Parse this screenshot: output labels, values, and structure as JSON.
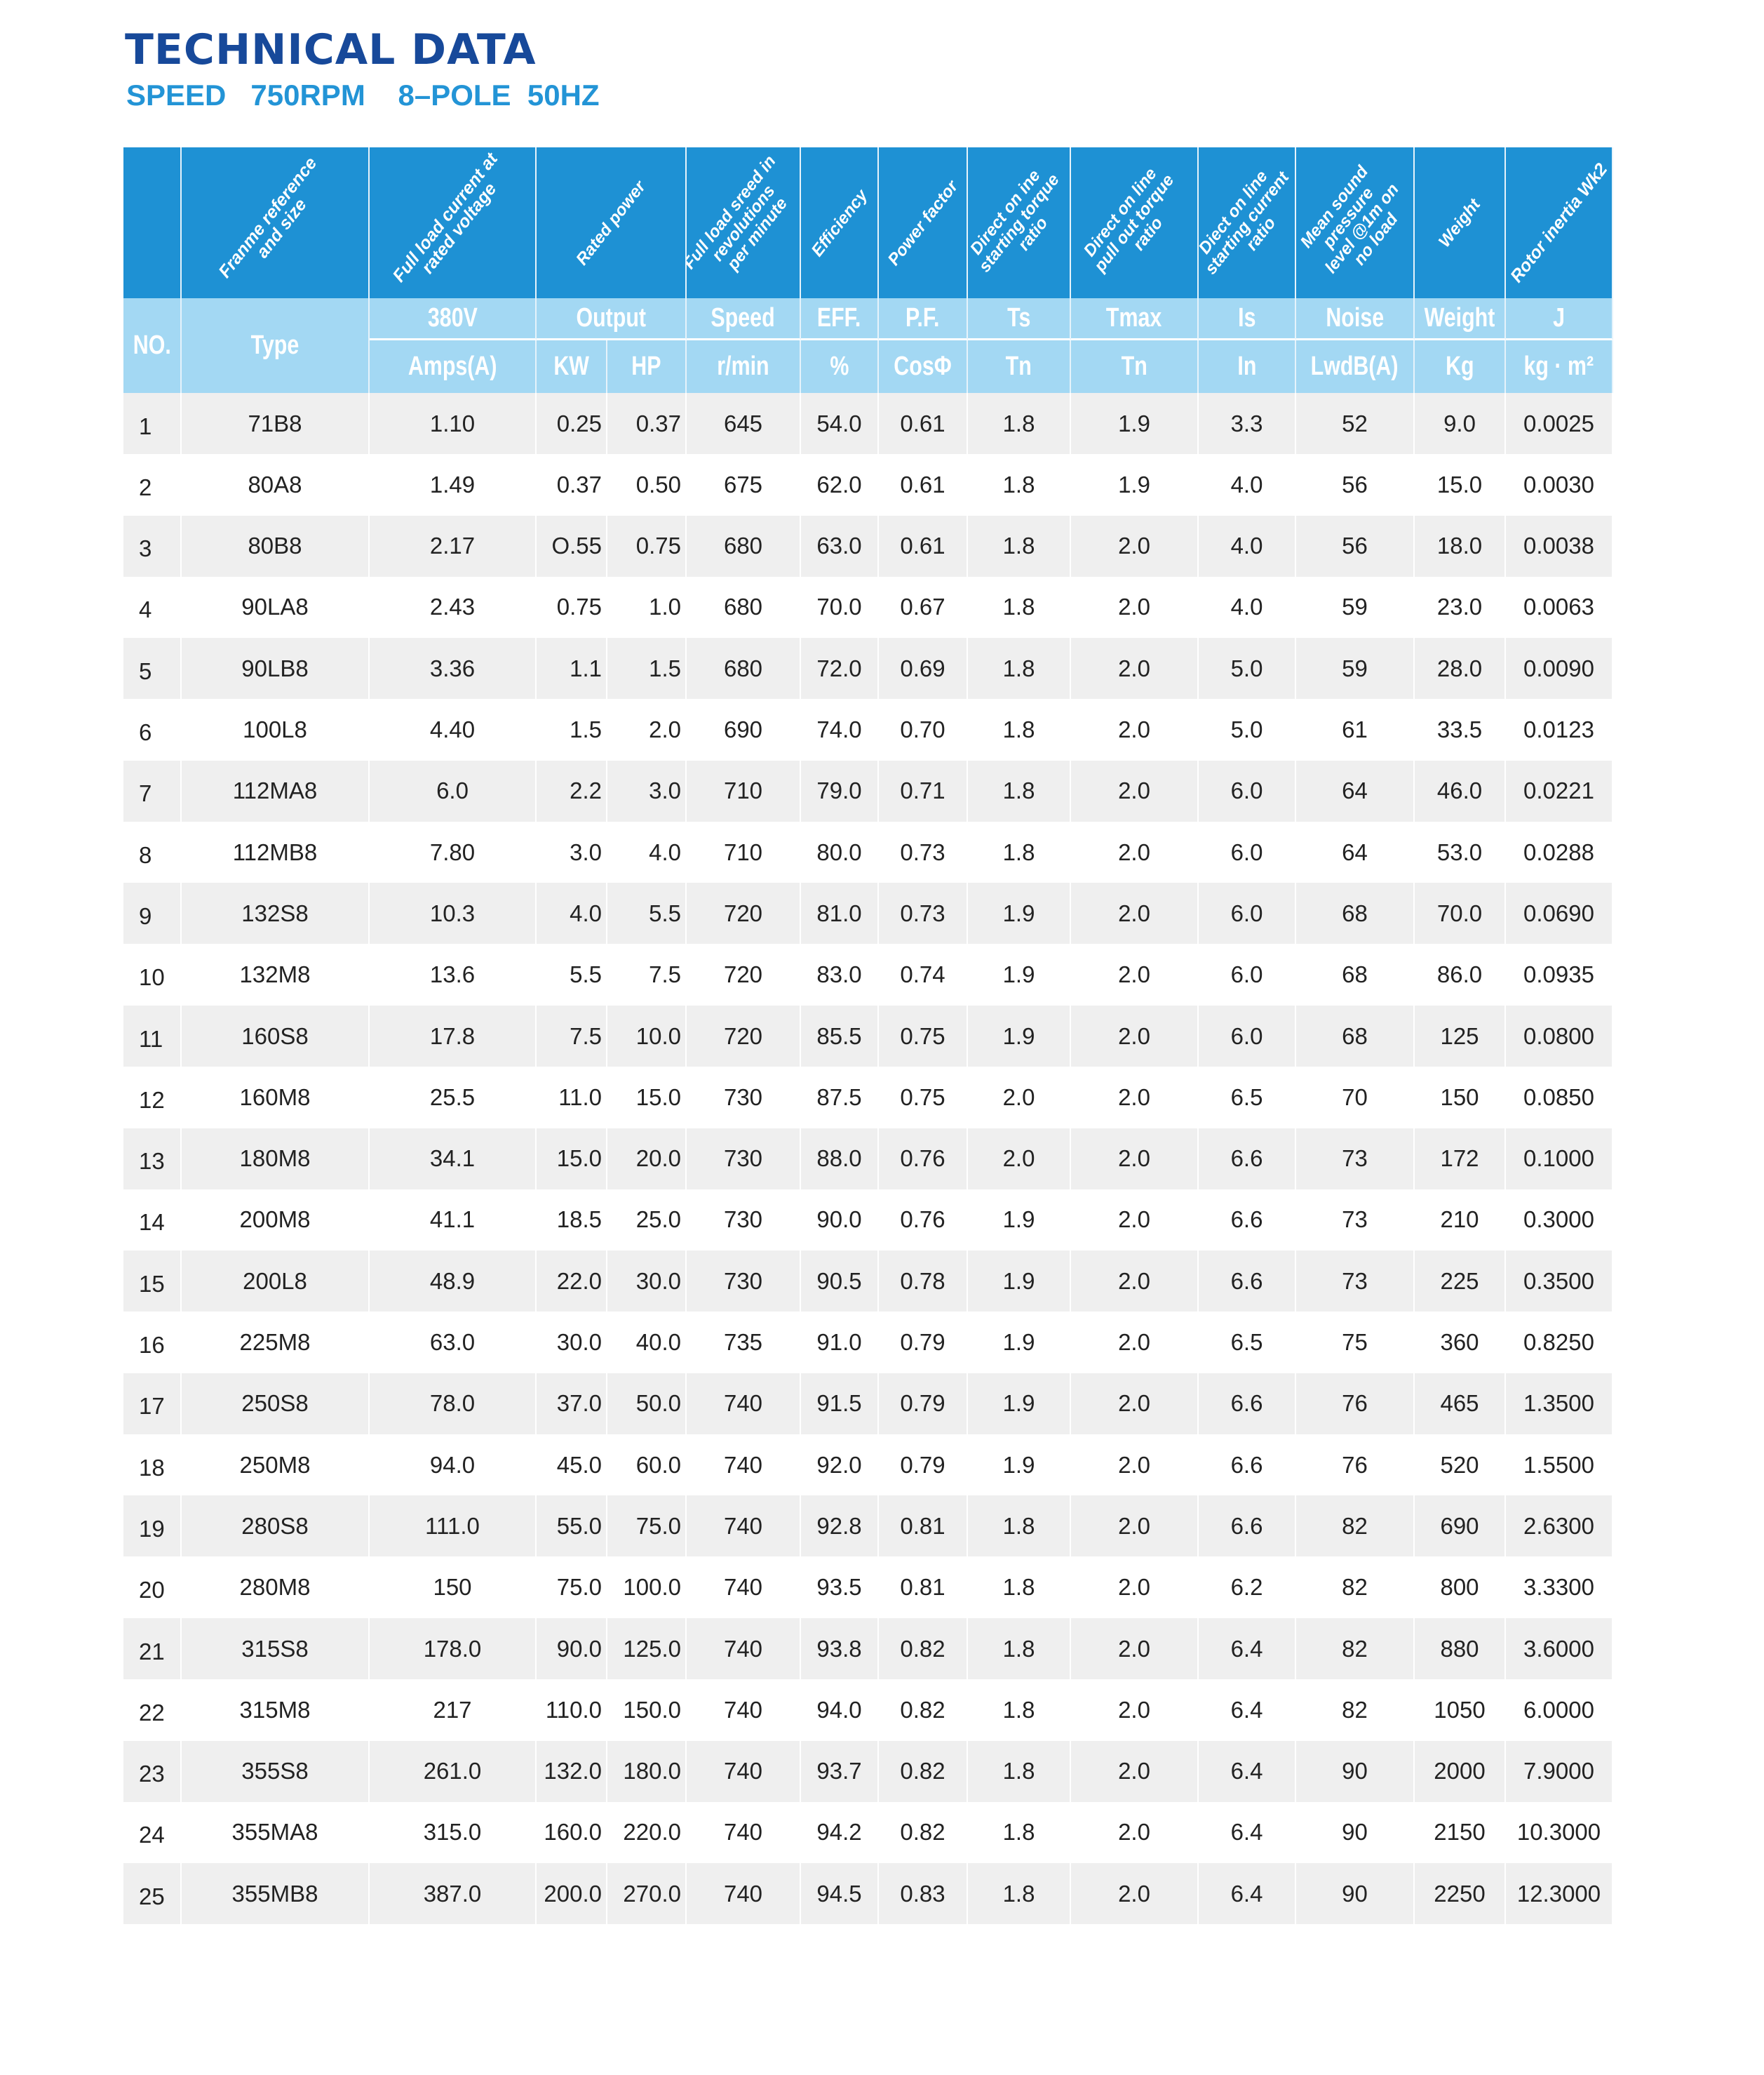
{
  "title": "TECHNICAL DATA",
  "subtitle": "SPEED   750RPM    8–POLE  50HZ",
  "colors": {
    "title": "#17499a",
    "subtitle": "#2394d6",
    "header": "#1e91d4",
    "subheader": "#a3d8f3",
    "row_alt": "#efefef"
  },
  "header_descriptions": [
    "",
    "Franme reference\nand size",
    "Full load current at\nrated voltage",
    "Rated power",
    "Full load sreed in\nrevolutions\nper minute",
    "Efficiency",
    "Power factor",
    "Direct on ine\nstarting torque\nratio",
    "Direct on line\npull out torque\nratio",
    "Diect on line\nstarting current\nratio",
    "Mean sound\npressure\nlevel @1m on\nno load",
    "Weight",
    "Rotor inertia Wk2"
  ],
  "subheader": {
    "no": "NO.",
    "type": "Type",
    "voltage": "380V",
    "output": "Output",
    "speed": "Speed",
    "eff": "EFF.",
    "pf": "P.F.",
    "ts": "Ts",
    "tmax": "Tmax",
    "is": "Is",
    "noise": "Noise",
    "weight": "Weight",
    "j": "J",
    "amps": "Amps(A)",
    "kw": "KW",
    "hp": "HP",
    "rmin": "r/min",
    "pct": "%",
    "cos": "CosΦ",
    "tn1": "Tn",
    "tn2": "Tn",
    "in": "In",
    "lwdb": "LwdB(A)",
    "kg": "Kg",
    "kgm2": "kg · m²"
  },
  "rows": [
    [
      "1",
      "71B8",
      "1.10",
      "0.25",
      "0.37",
      "645",
      "54.0",
      "0.61",
      "1.8",
      "1.9",
      "3.3",
      "52",
      "9.0",
      "0.0025"
    ],
    [
      "2",
      "80A8",
      "1.49",
      "0.37",
      "0.50",
      "675",
      "62.0",
      "0.61",
      "1.8",
      "1.9",
      "4.0",
      "56",
      "15.0",
      "0.0030"
    ],
    [
      "3",
      "80B8",
      "2.17",
      "O.55",
      "0.75",
      "680",
      "63.0",
      "0.61",
      "1.8",
      "2.0",
      "4.0",
      "56",
      "18.0",
      "0.0038"
    ],
    [
      "4",
      "90LA8",
      "2.43",
      "0.75",
      "1.0",
      "680",
      "70.0",
      "0.67",
      "1.8",
      "2.0",
      "4.0",
      "59",
      "23.0",
      "0.0063"
    ],
    [
      "5",
      "90LB8",
      "3.36",
      "1.1",
      "1.5",
      "680",
      "72.0",
      "0.69",
      "1.8",
      "2.0",
      "5.0",
      "59",
      "28.0",
      "0.0090"
    ],
    [
      "6",
      "100L8",
      "4.40",
      "1.5",
      "2.0",
      "690",
      "74.0",
      "0.70",
      "1.8",
      "2.0",
      "5.0",
      "61",
      "33.5",
      "0.0123"
    ],
    [
      "7",
      "112MA8",
      "6.0",
      "2.2",
      "3.0",
      "710",
      "79.0",
      "0.71",
      "1.8",
      "2.0",
      "6.0",
      "64",
      "46.0",
      "0.0221"
    ],
    [
      "8",
      "112MB8",
      "7.80",
      "3.0",
      "4.0",
      "710",
      "80.0",
      "0.73",
      "1.8",
      "2.0",
      "6.0",
      "64",
      "53.0",
      "0.0288"
    ],
    [
      "9",
      "132S8",
      "10.3",
      "4.0",
      "5.5",
      "720",
      "81.0",
      "0.73",
      "1.9",
      "2.0",
      "6.0",
      "68",
      "70.0",
      "0.0690"
    ],
    [
      "10",
      "132M8",
      "13.6",
      "5.5",
      "7.5",
      "720",
      "83.0",
      "0.74",
      "1.9",
      "2.0",
      "6.0",
      "68",
      "86.0",
      "0.0935"
    ],
    [
      "11",
      "160S8",
      "17.8",
      "7.5",
      "10.0",
      "720",
      "85.5",
      "0.75",
      "1.9",
      "2.0",
      "6.0",
      "68",
      "125",
      "0.0800"
    ],
    [
      "12",
      "160M8",
      "25.5",
      "11.0",
      "15.0",
      "730",
      "87.5",
      "0.75",
      "2.0",
      "2.0",
      "6.5",
      "70",
      "150",
      "0.0850"
    ],
    [
      "13",
      "180M8",
      "34.1",
      "15.0",
      "20.0",
      "730",
      "88.0",
      "0.76",
      "2.0",
      "2.0",
      "6.6",
      "73",
      "172",
      "0.1000"
    ],
    [
      "14",
      "200M8",
      "41.1",
      "18.5",
      "25.0",
      "730",
      "90.0",
      "0.76",
      "1.9",
      "2.0",
      "6.6",
      "73",
      "210",
      "0.3000"
    ],
    [
      "15",
      "200L8",
      "48.9",
      "22.0",
      "30.0",
      "730",
      "90.5",
      "0.78",
      "1.9",
      "2.0",
      "6.6",
      "73",
      "225",
      "0.3500"
    ],
    [
      "16",
      "225M8",
      "63.0",
      "30.0",
      "40.0",
      "735",
      "91.0",
      "0.79",
      "1.9",
      "2.0",
      "6.5",
      "75",
      "360",
      "0.8250"
    ],
    [
      "17",
      "250S8",
      "78.0",
      "37.0",
      "50.0",
      "740",
      "91.5",
      "0.79",
      "1.9",
      "2.0",
      "6.6",
      "76",
      "465",
      "1.3500"
    ],
    [
      "18",
      "250M8",
      "94.0",
      "45.0",
      "60.0",
      "740",
      "92.0",
      "0.79",
      "1.9",
      "2.0",
      "6.6",
      "76",
      "520",
      "1.5500"
    ],
    [
      "19",
      "280S8",
      "111.0",
      "55.0",
      "75.0",
      "740",
      "92.8",
      "0.81",
      "1.8",
      "2.0",
      "6.6",
      "82",
      "690",
      "2.6300"
    ],
    [
      "20",
      "280M8",
      "150",
      "75.0",
      "100.0",
      "740",
      "93.5",
      "0.81",
      "1.8",
      "2.0",
      "6.2",
      "82",
      "800",
      "3.3300"
    ],
    [
      "21",
      "315S8",
      "178.0",
      "90.0",
      "125.0",
      "740",
      "93.8",
      "0.82",
      "1.8",
      "2.0",
      "6.4",
      "82",
      "880",
      "3.6000"
    ],
    [
      "22",
      "315M8",
      "217",
      "110.0",
      "150.0",
      "740",
      "94.0",
      "0.82",
      "1.8",
      "2.0",
      "6.4",
      "82",
      "1050",
      "6.0000"
    ],
    [
      "23",
      "355S8",
      "261.0",
      "132.0",
      "180.0",
      "740",
      "93.7",
      "0.82",
      "1.8",
      "2.0",
      "6.4",
      "90",
      "2000",
      "7.9000"
    ],
    [
      "24",
      "355MA8",
      "315.0",
      "160.0",
      "220.0",
      "740",
      "94.2",
      "0.82",
      "1.8",
      "2.0",
      "6.4",
      "90",
      "2150",
      "10.3000"
    ],
    [
      "25",
      "355MB8",
      "387.0",
      "200.0",
      "270.0",
      "740",
      "94.5",
      "0.83",
      "1.8",
      "2.0",
      "6.4",
      "90",
      "2250",
      "12.3000"
    ]
  ]
}
